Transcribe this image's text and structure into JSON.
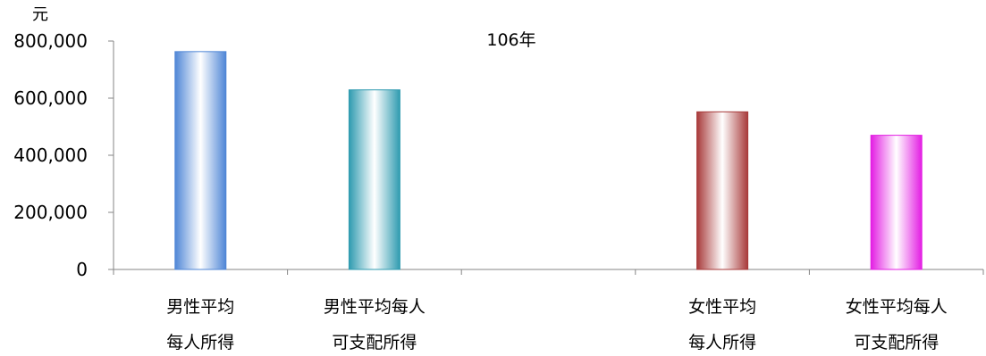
{
  "chart_data": {
    "type": "bar",
    "title": "106年",
    "unit_label": "元",
    "categories": [
      [
        "男性平均",
        "每人所得"
      ],
      [
        "男性平均每人",
        "可支配所得"
      ],
      [
        "",
        ""
      ],
      [
        "女性平均",
        "每人所得"
      ],
      [
        "女性平均每人",
        "可支配所得"
      ]
    ],
    "values": [
      763000,
      629000,
      null,
      552000,
      470000
    ],
    "colors": [
      "#4f86d6",
      "#2f9bb0",
      null,
      "#a83a3a",
      "#e31ee3"
    ],
    "ylim": [
      0,
      800000
    ],
    "yticks": [
      "0",
      "200,000",
      "400,000",
      "600,000",
      "800,000"
    ],
    "ytick_values": [
      0,
      200000,
      400000,
      600000,
      800000
    ],
    "grid": false,
    "legend": "none"
  }
}
